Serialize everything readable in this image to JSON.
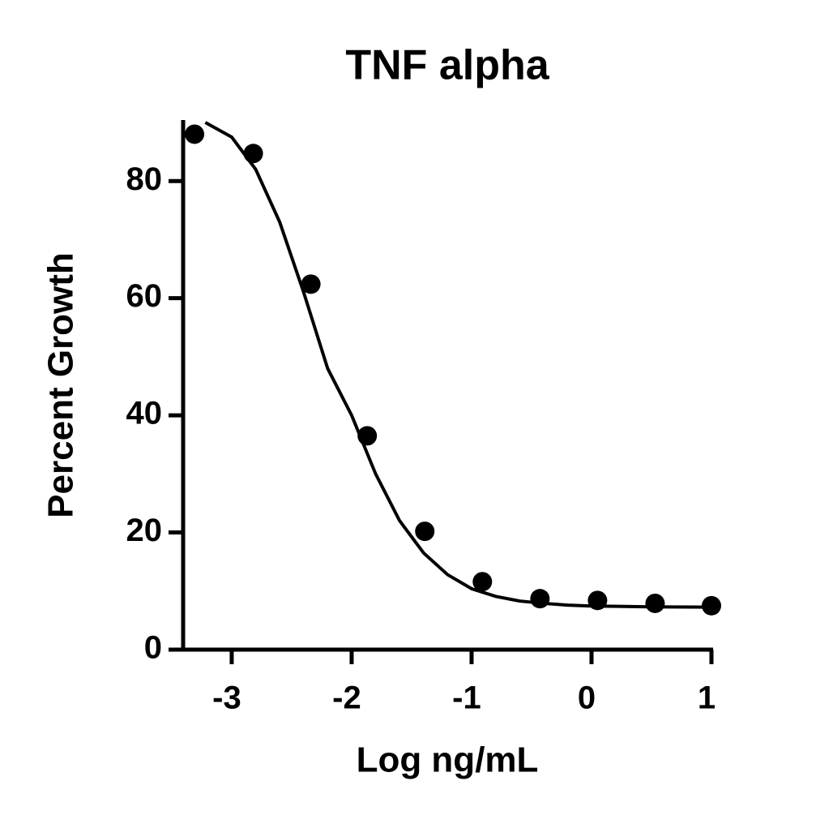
{
  "chart_data": {
    "type": "scatter",
    "title": "TNF alpha",
    "x_label": "Log ng/mL",
    "y_label": "Percent Growth",
    "series": [
      {
        "color": "#000000",
        "x": [
          -3.31,
          -2.82,
          -2.34,
          -1.87,
          -1.39,
          -0.91,
          -0.43,
          0.05,
          0.53,
          1.0
        ],
        "values": [
          88.0,
          84.7,
          62.4,
          36.5,
          20.2,
          11.6,
          8.7,
          8.4,
          7.9,
          7.5
        ]
      }
    ],
    "fit": {
      "color": "#000000",
      "x": [
        -3.22,
        -3.0,
        -2.8,
        -2.6,
        -2.4,
        -2.2,
        -2.0,
        -1.8,
        -1.6,
        -1.4,
        -1.2,
        -1.0,
        -0.8,
        -0.6,
        -0.4,
        -0.2,
        0.0,
        0.5,
        1.0
      ],
      "values": [
        90,
        87.5,
        82,
        73,
        61,
        48,
        40,
        30,
        22,
        16.5,
        12.8,
        10.4,
        9.1,
        8.3,
        7.9,
        7.6,
        7.45,
        7.3,
        7.25
      ]
    },
    "xlim": [
      -3.405,
      1
    ],
    "ylim": [
      0,
      90
    ],
    "xticks": [
      -3,
      -2,
      -1,
      0,
      1
    ],
    "yticks": [
      0,
      20,
      40,
      60,
      80
    ]
  }
}
